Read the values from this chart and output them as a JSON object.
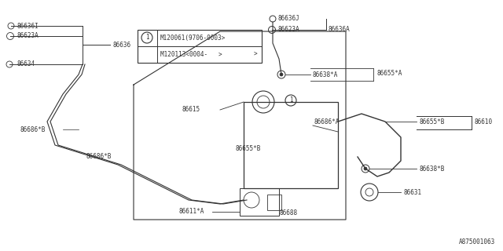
{
  "bg_color": "#ffffff",
  "line_color": "#333333",
  "part_number_ref": "A875001063",
  "table_rows": [
    "M120061(9706-0003>",
    "M120113<0004-   >"
  ],
  "fs": 6.5,
  "fs_small": 5.5
}
